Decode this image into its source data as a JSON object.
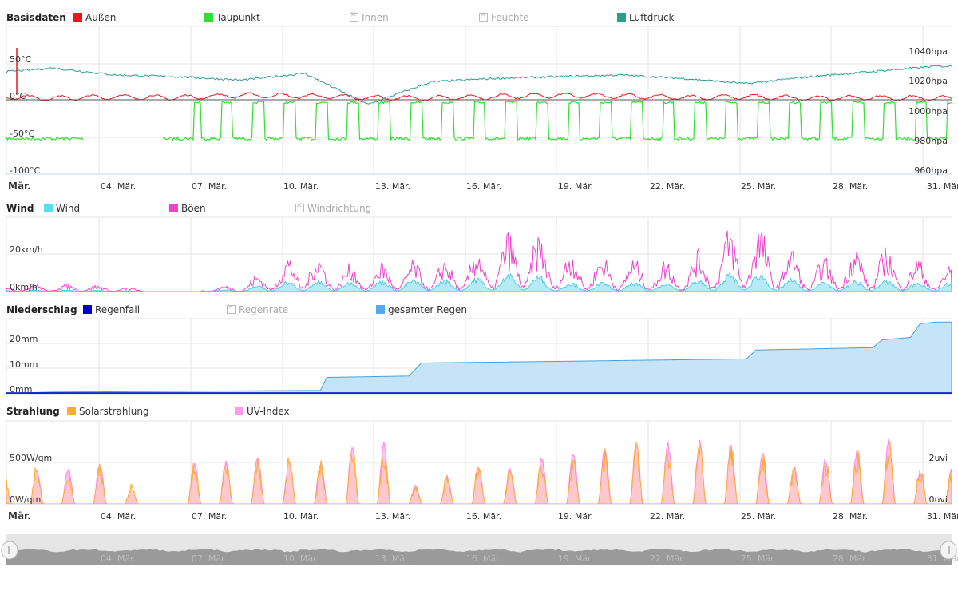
{
  "panels": {
    "basis": {
      "title": "Basisdaten",
      "legend": [
        {
          "label": "Außen",
          "color": "#e41a1c",
          "enabled": true
        },
        {
          "label": "Taupunkt",
          "color": "#33dd33",
          "enabled": true
        },
        {
          "label": "Innen",
          "color": "#aaaaaa",
          "enabled": false
        },
        {
          "label": "Feuchte",
          "color": "#aaaaaa",
          "enabled": false
        },
        {
          "label": "Luftdruck",
          "color": "#2a9d8f",
          "enabled": true
        }
      ],
      "y_left_ticks": [
        "50°C",
        "0°C",
        "-50°C",
        "-100°C"
      ],
      "y_right_ticks": [
        "1040hpa",
        "1020hpa",
        "1000hpa",
        "980hpa",
        "960hpa"
      ]
    },
    "wind": {
      "title": "Wind",
      "legend": [
        {
          "label": "Wind",
          "color": "#55e0f0",
          "enabled": true
        },
        {
          "label": "Böen",
          "color": "#ee44cc",
          "enabled": true
        },
        {
          "label": "Windrichtung",
          "color": "#aaaaaa",
          "enabled": false
        }
      ],
      "y_ticks": [
        "20km/h",
        "0km/h"
      ]
    },
    "rain": {
      "title": "Niederschlag",
      "legend": [
        {
          "label": "Regenfall",
          "color": "#0000cc",
          "enabled": true
        },
        {
          "label": "Regenrate",
          "color": "#aaaaaa",
          "enabled": false
        },
        {
          "label": "gesamter Regen",
          "color": "#55aaee",
          "enabled": true
        }
      ],
      "y_ticks": [
        "20mm",
        "10mm",
        "0mm"
      ]
    },
    "solar": {
      "title": "Strahlung",
      "legend": [
        {
          "label": "Solarstrahlung",
          "color": "#ffaa33",
          "enabled": true
        },
        {
          "label": "UV-Index",
          "color": "#ff99ee",
          "enabled": true
        }
      ],
      "y_left_ticks": [
        "500W/qm",
        "0W/qm"
      ],
      "y_right_ticks": [
        "2uvi",
        "0uvi"
      ]
    }
  },
  "x_axis_labels": [
    "Mär.",
    "04. Mär.",
    "07. Mär.",
    "10. Mär.",
    "13. Mär.",
    "16. Mär.",
    "19. Mär.",
    "22. Mär.",
    "25. Mär.",
    "28. Mär.",
    "31. Mär."
  ],
  "chart_data": [
    {
      "type": "line",
      "title": "Basisdaten",
      "x_range": [
        "01. Mär.",
        "31. Mär."
      ],
      "y_left_range": [
        -100,
        50
      ],
      "y_right_range": [
        960,
        1040
      ],
      "series": [
        {
          "name": "Außen",
          "axis": "left",
          "x_day": [
            1,
            3,
            5,
            7,
            9,
            11,
            13,
            15,
            17,
            19,
            21,
            23,
            25,
            27,
            29,
            31
          ],
          "values": [
            5,
            2,
            4,
            3,
            6,
            5,
            3,
            2,
            4,
            6,
            5,
            3,
            4,
            2,
            3,
            2
          ]
        },
        {
          "name": "Taupunkt",
          "axis": "left",
          "x_day": [
            1,
            3,
            5,
            7,
            9,
            11,
            13,
            15,
            17,
            19,
            21,
            23,
            25,
            27,
            29,
            31
          ],
          "values": [
            -50,
            -52,
            -50,
            -2,
            -52,
            -50,
            -2,
            -52,
            -50,
            -2,
            -52,
            -50,
            -2,
            -52,
            -50,
            -2
          ]
        },
        {
          "name": "Luftdruck",
          "axis": "right",
          "x_day": [
            1,
            3,
            5,
            7,
            9,
            11,
            13,
            15,
            17,
            19,
            21,
            23,
            25,
            27,
            29,
            31
          ],
          "values": [
            1018,
            1021,
            1017,
            1016,
            1014,
            1018,
            1000,
            1013,
            1015,
            1016,
            1017,
            1015,
            1012,
            1016,
            1019,
            1022
          ]
        }
      ]
    },
    {
      "type": "area",
      "title": "Wind",
      "x_range": [
        "01. Mär.",
        "31. Mär."
      ],
      "y_range": [
        0,
        28
      ],
      "series": [
        {
          "name": "Wind",
          "x_day": [
            1,
            4,
            7,
            9,
            10,
            11,
            12,
            14,
            16,
            18,
            19,
            21,
            23,
            25,
            27,
            29,
            31
          ],
          "values": [
            0.5,
            0.5,
            0,
            1,
            3,
            4,
            3,
            4,
            4,
            7,
            3,
            3,
            3,
            7,
            3,
            4,
            3
          ]
        },
        {
          "name": "Böen",
          "x_day": [
            1,
            4,
            7,
            9,
            10,
            11,
            12,
            14,
            16,
            18,
            19,
            21,
            23,
            25,
            27,
            29,
            31
          ],
          "values": [
            2,
            2,
            0,
            2,
            7,
            12,
            7,
            8,
            9,
            18,
            11,
            9,
            8,
            20,
            8,
            13,
            7
          ]
        }
      ]
    },
    {
      "type": "area",
      "title": "Niederschlag",
      "x_range": [
        "01. Mär.",
        "31. Mär."
      ],
      "y_range": [
        0,
        22
      ],
      "series": [
        {
          "name": "Regenfall",
          "x_day": [
            1,
            31
          ],
          "values": [
            0,
            0
          ]
        },
        {
          "name": "gesamter Regen",
          "x_day": [
            1,
            3,
            11.5,
            11.7,
            14.3,
            14.7,
            20,
            25,
            25.3,
            29,
            29.3,
            30.2,
            30.5,
            31
          ],
          "values": [
            0,
            0.5,
            1,
            4.8,
            5.2,
            9,
            9.6,
            10.2,
            12.8,
            13.5,
            15.8,
            16.5,
            20.5,
            21
          ]
        }
      ]
    },
    {
      "type": "area",
      "title": "Strahlung",
      "x_range": [
        "01. Mär.",
        "31. Mär."
      ],
      "y_left_range": [
        0,
        1000
      ],
      "y_right_range": [
        0,
        4
      ],
      "series": [
        {
          "name": "Solarstrahlung",
          "axis": "left",
          "x_day": [
            1,
            2,
            3,
            4,
            5,
            6,
            7,
            8,
            9,
            10,
            11,
            12,
            13,
            14,
            15,
            16,
            17,
            18,
            19,
            20,
            21,
            22,
            23,
            24,
            25,
            26,
            27,
            28,
            29,
            30,
            31
          ],
          "values": [
            350,
            500,
            450,
            550,
            250,
            0,
            550,
            550,
            600,
            600,
            550,
            750,
            750,
            250,
            350,
            550,
            500,
            600,
            650,
            700,
            800,
            800,
            800,
            750,
            650,
            500,
            600,
            700,
            850,
            500,
            500
          ]
        },
        {
          "name": "UV-Index",
          "axis": "right",
          "x_day": [
            1,
            2,
            3,
            4,
            5,
            6,
            7,
            8,
            9,
            10,
            11,
            12,
            13,
            14,
            15,
            16,
            17,
            18,
            19,
            20,
            21,
            22,
            23,
            24,
            25,
            26,
            27,
            28,
            29,
            30,
            31
          ],
          "values": [
            0.6,
            1.7,
            1.8,
            2.0,
            0.5,
            0,
            2.0,
            2.2,
            2.4,
            2.2,
            2.1,
            2.9,
            3.0,
            0.9,
            1.4,
            1.9,
            1.8,
            2.3,
            2.7,
            2.8,
            3.1,
            3.0,
            3.1,
            2.9,
            2.6,
            1.8,
            2.3,
            2.8,
            3.3,
            1.6,
            1.9
          ]
        }
      ]
    }
  ]
}
